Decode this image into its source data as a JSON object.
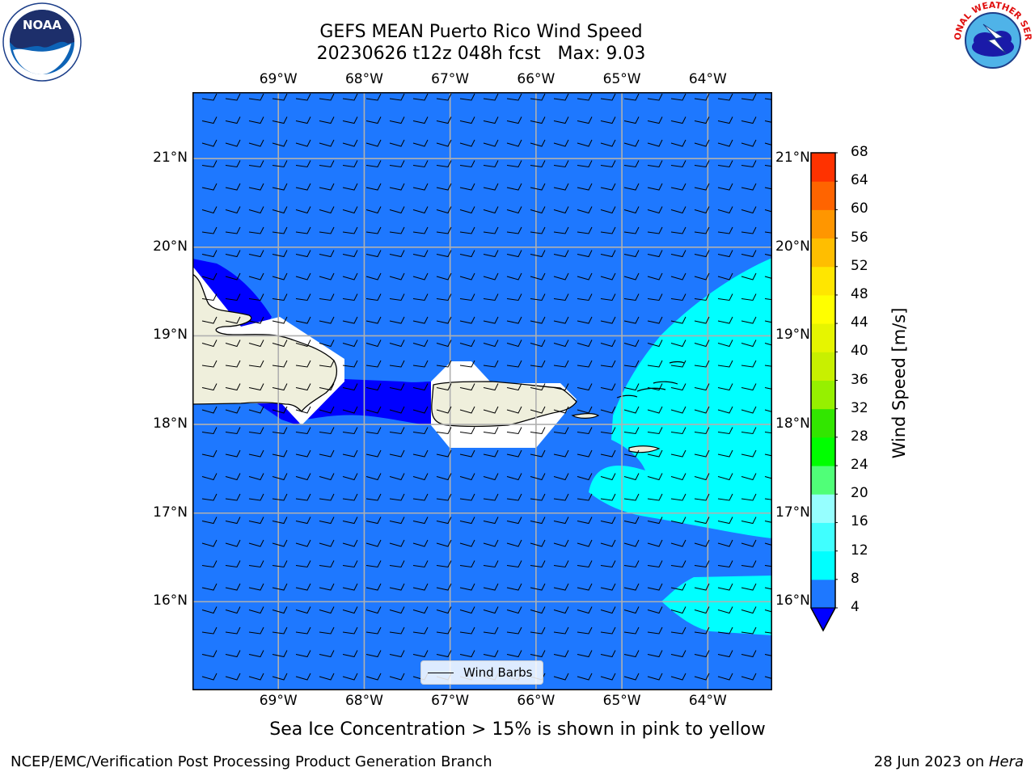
{
  "title": {
    "line1": "GEFS MEAN Puerto Rico Wind Speed",
    "line2": "20230626 t12z 048h fcst   Max: 9.03"
  },
  "logos": {
    "noaa": {
      "text": "NOAA",
      "icon": "noaa-logo-icon"
    },
    "nws": {
      "text": "NATIONAL WEATHER SERVICE",
      "icon": "nws-logo-icon"
    }
  },
  "map": {
    "lon_labels": [
      "69°W",
      "68°W",
      "67°W",
      "66°W",
      "65°W",
      "64°W"
    ],
    "lat_labels": [
      "21°N",
      "20°N",
      "19°N",
      "18°N",
      "17°N",
      "16°N"
    ],
    "lon_range": [
      -70.0,
      -63.25
    ],
    "lat_range": [
      15.0,
      21.75
    ],
    "ocean_color": "#1e78ff",
    "land_color": "#efefdc",
    "grid": true
  },
  "legend": {
    "label": "Wind Barbs"
  },
  "colorbar": {
    "title": "Wind Speed [m/s]",
    "ticks": [
      "68",
      "64",
      "60",
      "56",
      "52",
      "48",
      "44",
      "40",
      "36",
      "32",
      "28",
      "24",
      "20",
      "16",
      "12",
      "8",
      "4"
    ],
    "levels": [
      4,
      8,
      12,
      16,
      20,
      24,
      28,
      32,
      36,
      40,
      44,
      48,
      52,
      56,
      60,
      64,
      68
    ],
    "colors": [
      "#1e78ff",
      "#00ffff",
      "#40ffff",
      "#96ffff",
      "#50ff78",
      "#00ff00",
      "#32e600",
      "#96f000",
      "#c8f000",
      "#e6f500",
      "#ffff00",
      "#ffe600",
      "#ffbe00",
      "#ff9600",
      "#ff6400",
      "#ff3200",
      "#ff0000"
    ],
    "under_color": "#0000ff"
  },
  "note": "Sea Ice Concentration > 15% is shown in pink to yellow",
  "footer": {
    "left": "NCEP/EMC/Verification Post Processing Product Generation Branch",
    "right_prefix": "28 Jun 2023 on ",
    "right_host": "Hera"
  }
}
